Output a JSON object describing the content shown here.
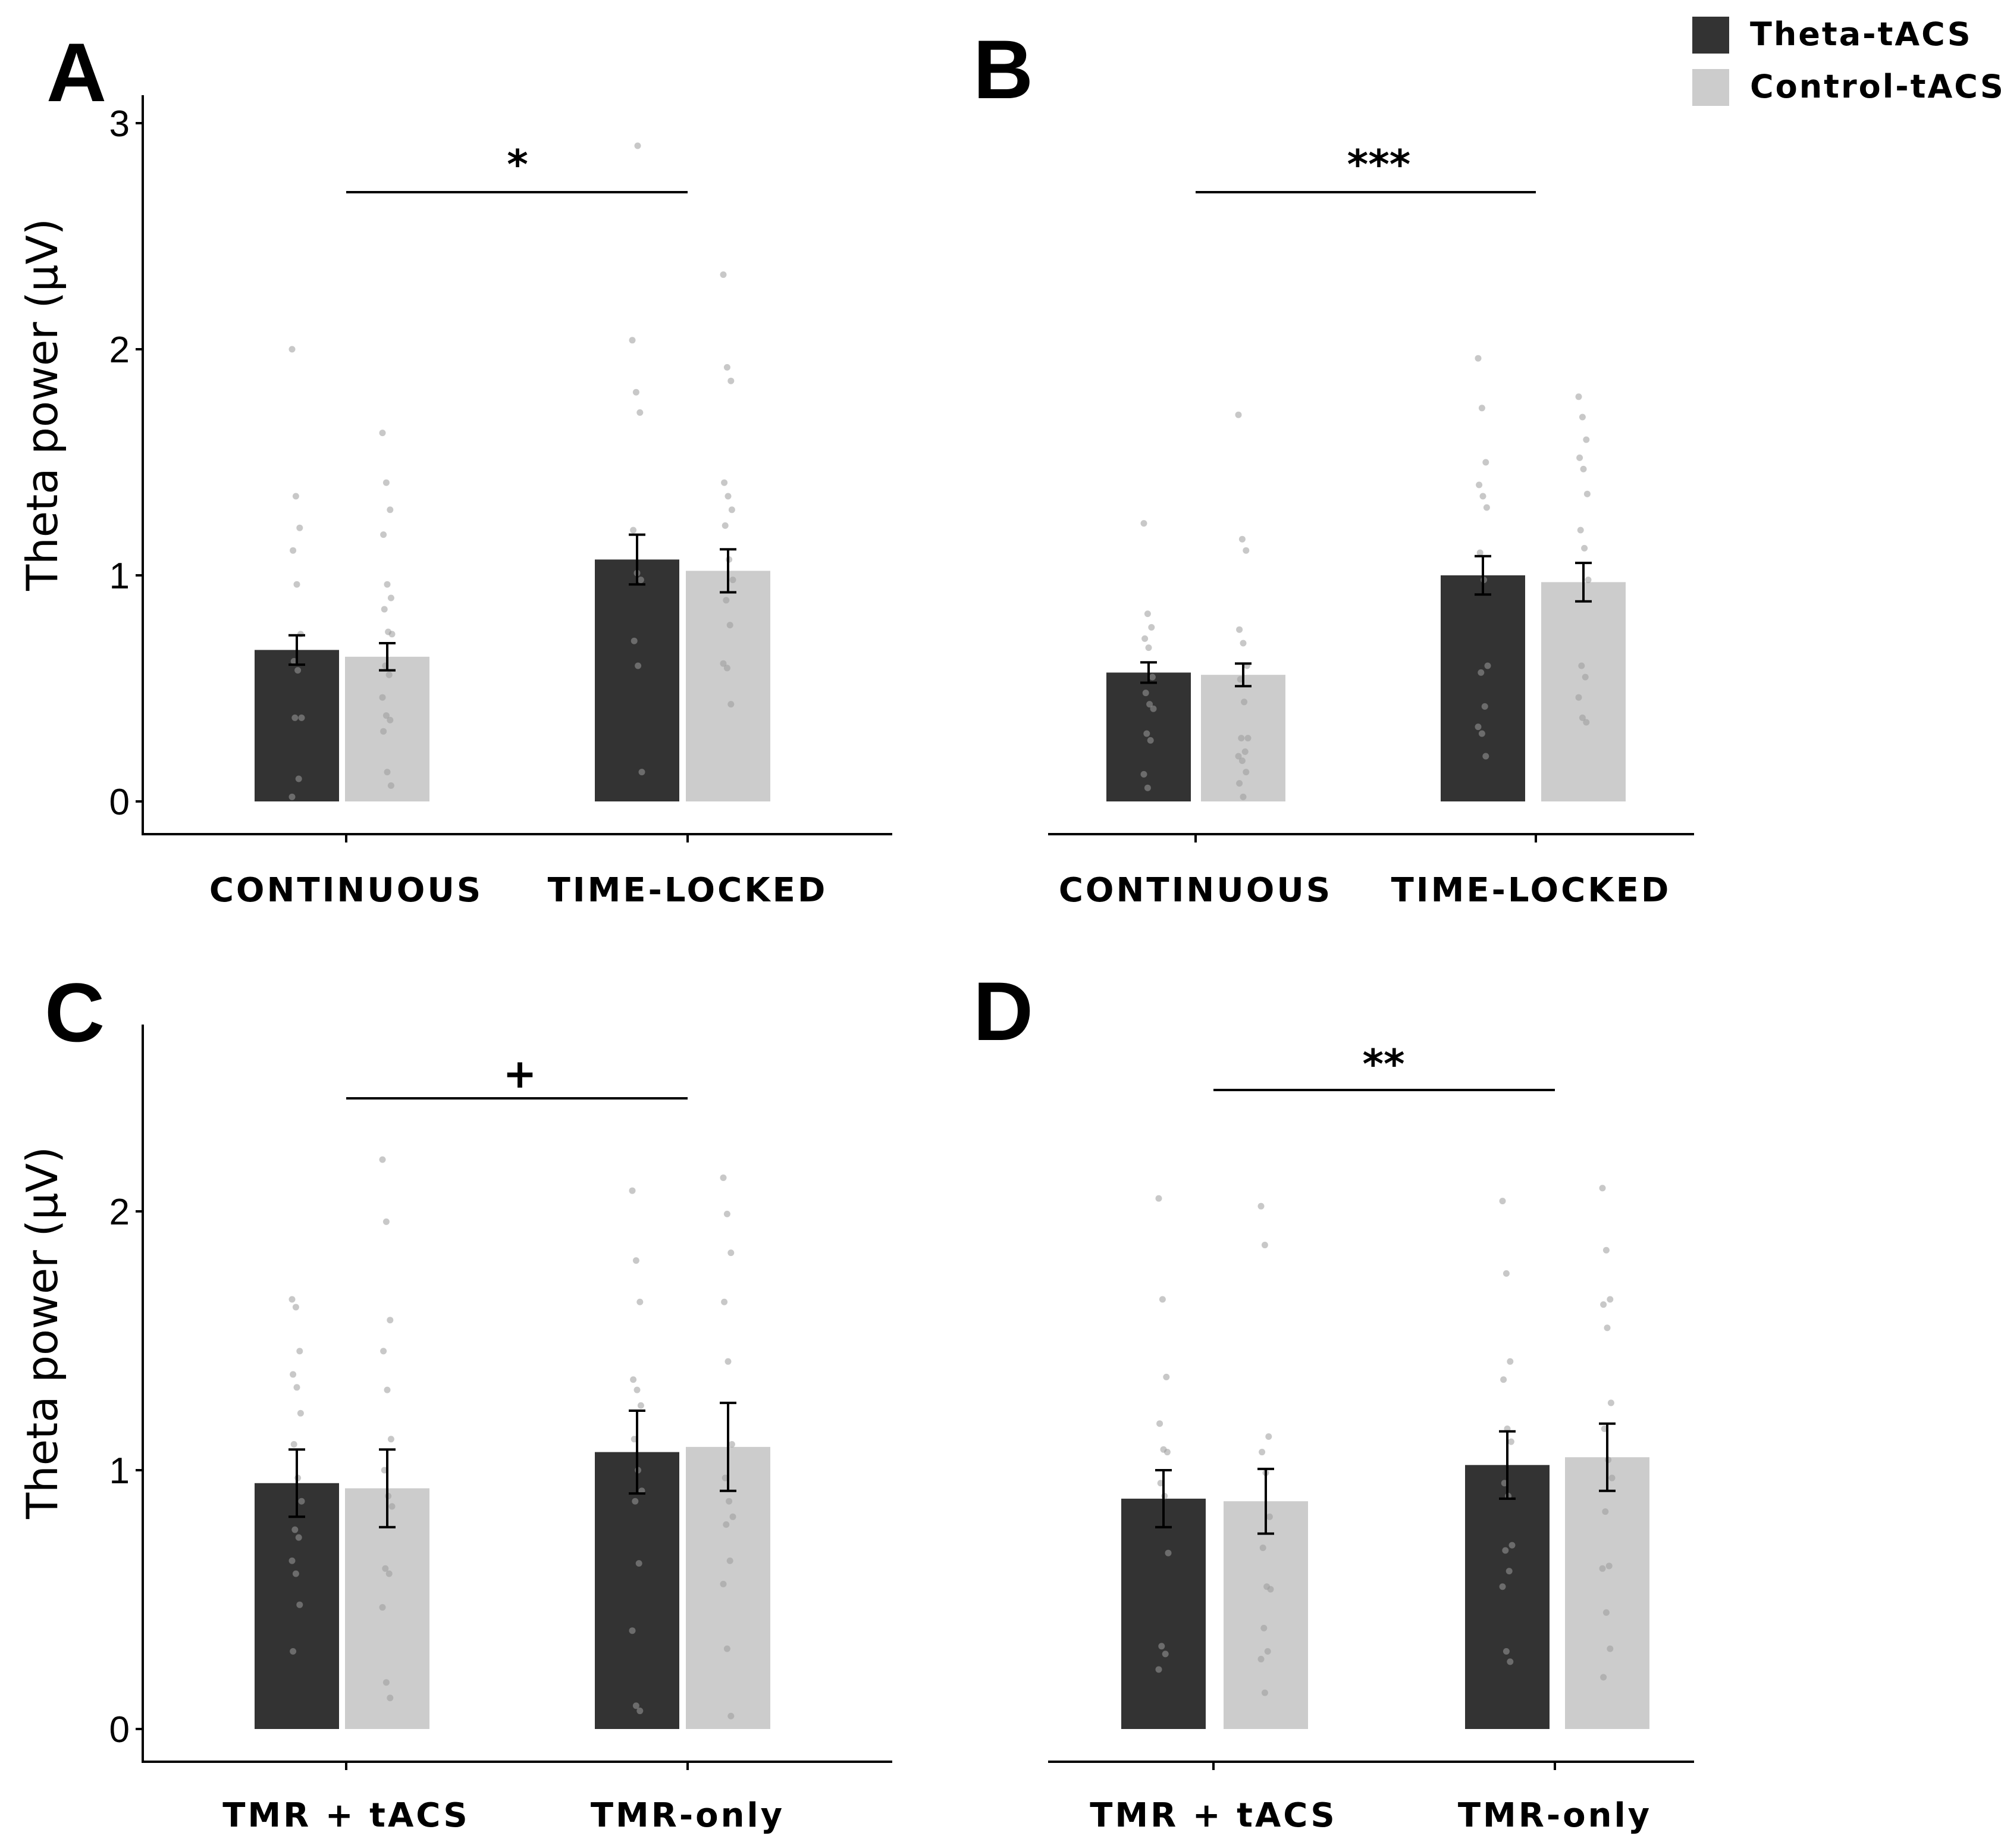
{
  "legend": {
    "entries": [
      {
        "label": "Theta-tACS",
        "color": "#333333"
      },
      {
        "label": "Control-tACS",
        "color": "#cccccc"
      }
    ]
  },
  "chart_data": [
    {
      "panel": "A",
      "type": "bar",
      "ylabel": "Theta power (µV)",
      "ylim": [
        0,
        3
      ],
      "yticks": [
        0,
        1,
        2,
        3
      ],
      "categories": [
        "CONTINUOUS",
        "TIME-LOCKED"
      ],
      "series": [
        {
          "name": "Theta-tACS",
          "values": [
            0.67,
            1.07
          ],
          "errors": [
            0.065,
            0.11
          ],
          "points": [
            [
              2.0,
              1.35,
              1.21,
              1.11,
              0.96,
              0.74,
              0.62,
              0.58,
              0.37,
              0.37,
              0.1,
              0.02
            ],
            [
              2.04,
              1.81,
              1.72,
              1.2,
              1.01,
              0.98,
              0.71,
              0.6,
              0.13
            ]
          ]
        },
        {
          "name": "Control-tACS",
          "values": [
            0.64,
            1.02
          ],
          "errors": [
            0.06,
            0.095
          ],
          "points": [
            [
              1.63,
              1.41,
              1.29,
              1.18,
              0.96,
              0.9,
              0.85,
              0.75,
              0.74,
              0.6,
              0.56,
              0.46,
              0.38,
              0.36,
              0.31,
              0.13,
              0.07
            ],
            [
              2.33,
              1.92,
              1.86,
              1.41,
              1.35,
              1.29,
              1.22,
              1.07,
              0.98,
              0.89,
              0.78,
              0.61,
              0.59,
              0.43
            ]
          ]
        }
      ],
      "significance": "*",
      "outlier": 2.9
    },
    {
      "panel": "B",
      "type": "bar",
      "ylabel": "",
      "ylim": [
        0,
        3
      ],
      "yticks": [],
      "categories": [
        "CONTINUOUS",
        "TIME-LOCKED"
      ],
      "series": [
        {
          "name": "Theta-tACS",
          "values": [
            0.57,
            1.0
          ],
          "errors": [
            0.045,
            0.085
          ],
          "points": [
            [
              1.23,
              0.83,
              0.77,
              0.72,
              0.68,
              0.55,
              0.48,
              0.43,
              0.41,
              0.3,
              0.27,
              0.12,
              0.06
            ],
            [
              1.96,
              1.74,
              1.5,
              1.4,
              1.35,
              1.3,
              1.1,
              0.98,
              0.6,
              0.57,
              0.42,
              0.33,
              0.3,
              0.2
            ]
          ]
        },
        {
          "name": "Control-tACS",
          "values": [
            0.56,
            0.97
          ],
          "errors": [
            0.05,
            0.085
          ],
          "points": [
            [
              1.71,
              1.16,
              1.11,
              0.76,
              0.7,
              0.6,
              0.54,
              0.44,
              0.28,
              0.28,
              0.22,
              0.2,
              0.18,
              0.13,
              0.08,
              0.02
            ],
            [
              1.79,
              1.7,
              1.6,
              1.52,
              1.47,
              1.36,
              1.2,
              1.12,
              0.98,
              0.6,
              0.55,
              0.46,
              0.37,
              0.35
            ]
          ]
        }
      ],
      "significance": "***"
    },
    {
      "panel": "C",
      "type": "bar",
      "ylabel": "Theta power (µV)",
      "ylim": [
        0,
        2.7
      ],
      "yticks": [
        0,
        1,
        2
      ],
      "categories": [
        "TMR + tACS",
        "TMR-only"
      ],
      "series": [
        {
          "name": "Theta-tACS",
          "values": [
            0.95,
            1.07
          ],
          "errors": [
            0.13,
            0.16
          ],
          "points": [
            [
              1.66,
              1.63,
              1.46,
              1.37,
              1.32,
              1.22,
              1.1,
              0.97,
              0.88,
              0.77,
              0.74,
              0.65,
              0.6,
              0.48,
              0.3
            ],
            [
              2.08,
              1.81,
              1.65,
              1.35,
              1.31,
              1.25,
              1.12,
              1.0,
              0.92,
              0.88,
              0.64,
              0.38,
              0.09,
              0.07
            ]
          ]
        },
        {
          "name": "Control-tACS",
          "values": [
            0.93,
            1.09
          ],
          "errors": [
            0.15,
            0.17
          ],
          "points": [
            [
              2.2,
              1.96,
              1.58,
              1.46,
              1.31,
              1.12,
              1.0,
              0.9,
              0.86,
              0.62,
              0.6,
              0.47,
              0.18,
              0.12
            ],
            [
              2.13,
              1.99,
              1.84,
              1.65,
              1.42,
              1.1,
              0.97,
              0.88,
              0.82,
              0.79,
              0.65,
              0.56,
              0.31,
              0.05
            ]
          ]
        }
      ],
      "significance": "+"
    },
    {
      "panel": "D",
      "type": "bar",
      "ylabel": "",
      "ylim": [
        0,
        2.7
      ],
      "yticks": [],
      "categories": [
        "TMR + tACS",
        "TMR-only"
      ],
      "series": [
        {
          "name": "Theta-tACS",
          "values": [
            0.89,
            1.02
          ],
          "errors": [
            0.11,
            0.13
          ],
          "points": [
            [
              2.05,
              1.66,
              1.36,
              1.18,
              1.08,
              1.07,
              0.95,
              0.9,
              0.68,
              0.32,
              0.29,
              0.23
            ],
            [
              2.04,
              1.76,
              1.42,
              1.35,
              1.16,
              1.11,
              0.95,
              0.9,
              0.71,
              0.69,
              0.61,
              0.55,
              0.3,
              0.26
            ]
          ]
        },
        {
          "name": "Control-tACS",
          "values": [
            0.88,
            1.05
          ],
          "errors": [
            0.125,
            0.13
          ],
          "points": [
            [
              2.02,
              1.87,
              1.13,
              1.07,
              0.99,
              0.82,
              0.7,
              0.55,
              0.54,
              0.39,
              0.3,
              0.27,
              0.14
            ],
            [
              2.09,
              1.85,
              1.66,
              1.64,
              1.55,
              1.26,
              1.16,
              1.04,
              0.97,
              0.84,
              0.63,
              0.62,
              0.45,
              0.31,
              0.2
            ]
          ]
        }
      ],
      "significance": "**"
    }
  ]
}
